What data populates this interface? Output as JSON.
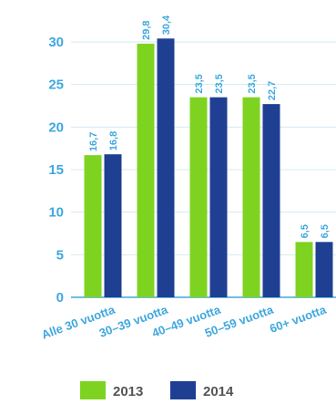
{
  "chart_data": {
    "type": "bar",
    "categories": [
      "Alle 30 vuotta",
      "30–39 vuotta",
      "40–49 vuotta",
      "50–59 vuotta",
      "60+ vuotta"
    ],
    "series": [
      {
        "name": "2013",
        "color": "#7ed321",
        "values": [
          16.7,
          29.8,
          23.5,
          23.5,
          6.5
        ],
        "labels": [
          "16,7",
          "29,8",
          "23,5",
          "23,5",
          "6,5"
        ]
      },
      {
        "name": "2014",
        "color": "#1f3f93",
        "values": [
          16.8,
          30.4,
          23.5,
          22.7,
          6.5
        ],
        "labels": [
          "16,8",
          "30,4",
          "23,5",
          "22,7",
          "6,5"
        ]
      }
    ],
    "ylim": [
      0,
      30
    ],
    "yticks": [
      0,
      5,
      10,
      15,
      20,
      25,
      30
    ],
    "ytick_labels": [
      "0",
      "5",
      "10",
      "15",
      "20",
      "25",
      "30"
    ],
    "grid": true,
    "legend_position": "bottom"
  }
}
